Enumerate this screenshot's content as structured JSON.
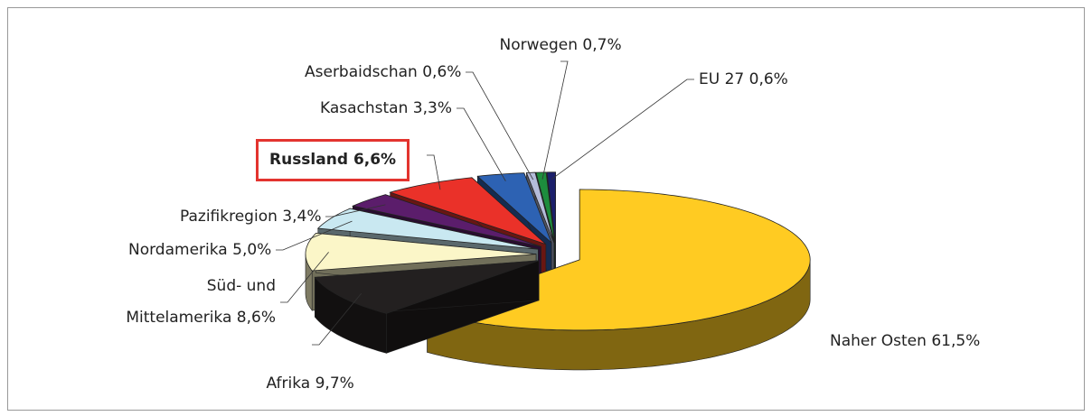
{
  "chart_data": {
    "type": "pie3d",
    "categories": [
      "Naher Osten",
      "Afrika",
      "Süd- und Mittelamerika",
      "Nordamerika",
      "Pazifikregion",
      "Russland",
      "Kasachstan",
      "Aserbaidschan",
      "Norwegen",
      "EU 27"
    ],
    "values": [
      61.5,
      9.7,
      8.6,
      5.0,
      3.4,
      6.6,
      3.3,
      0.6,
      0.7,
      0.6
    ],
    "value_labels": [
      "61,5%",
      "9,7%",
      "8,6%",
      "5,0%",
      "3,4%",
      "6,6%",
      "3,3%",
      "0,6%",
      "0,7%",
      "0,6%"
    ],
    "colors": [
      "#ffcb22",
      "#232020",
      "#fbf6c8",
      "#c9e8f1",
      "#5b1d6b",
      "#ea3129",
      "#2d62b3",
      "#b4bcda",
      "#1d8d3d",
      "#1b1f6b"
    ],
    "highlight_index": 5
  }
}
